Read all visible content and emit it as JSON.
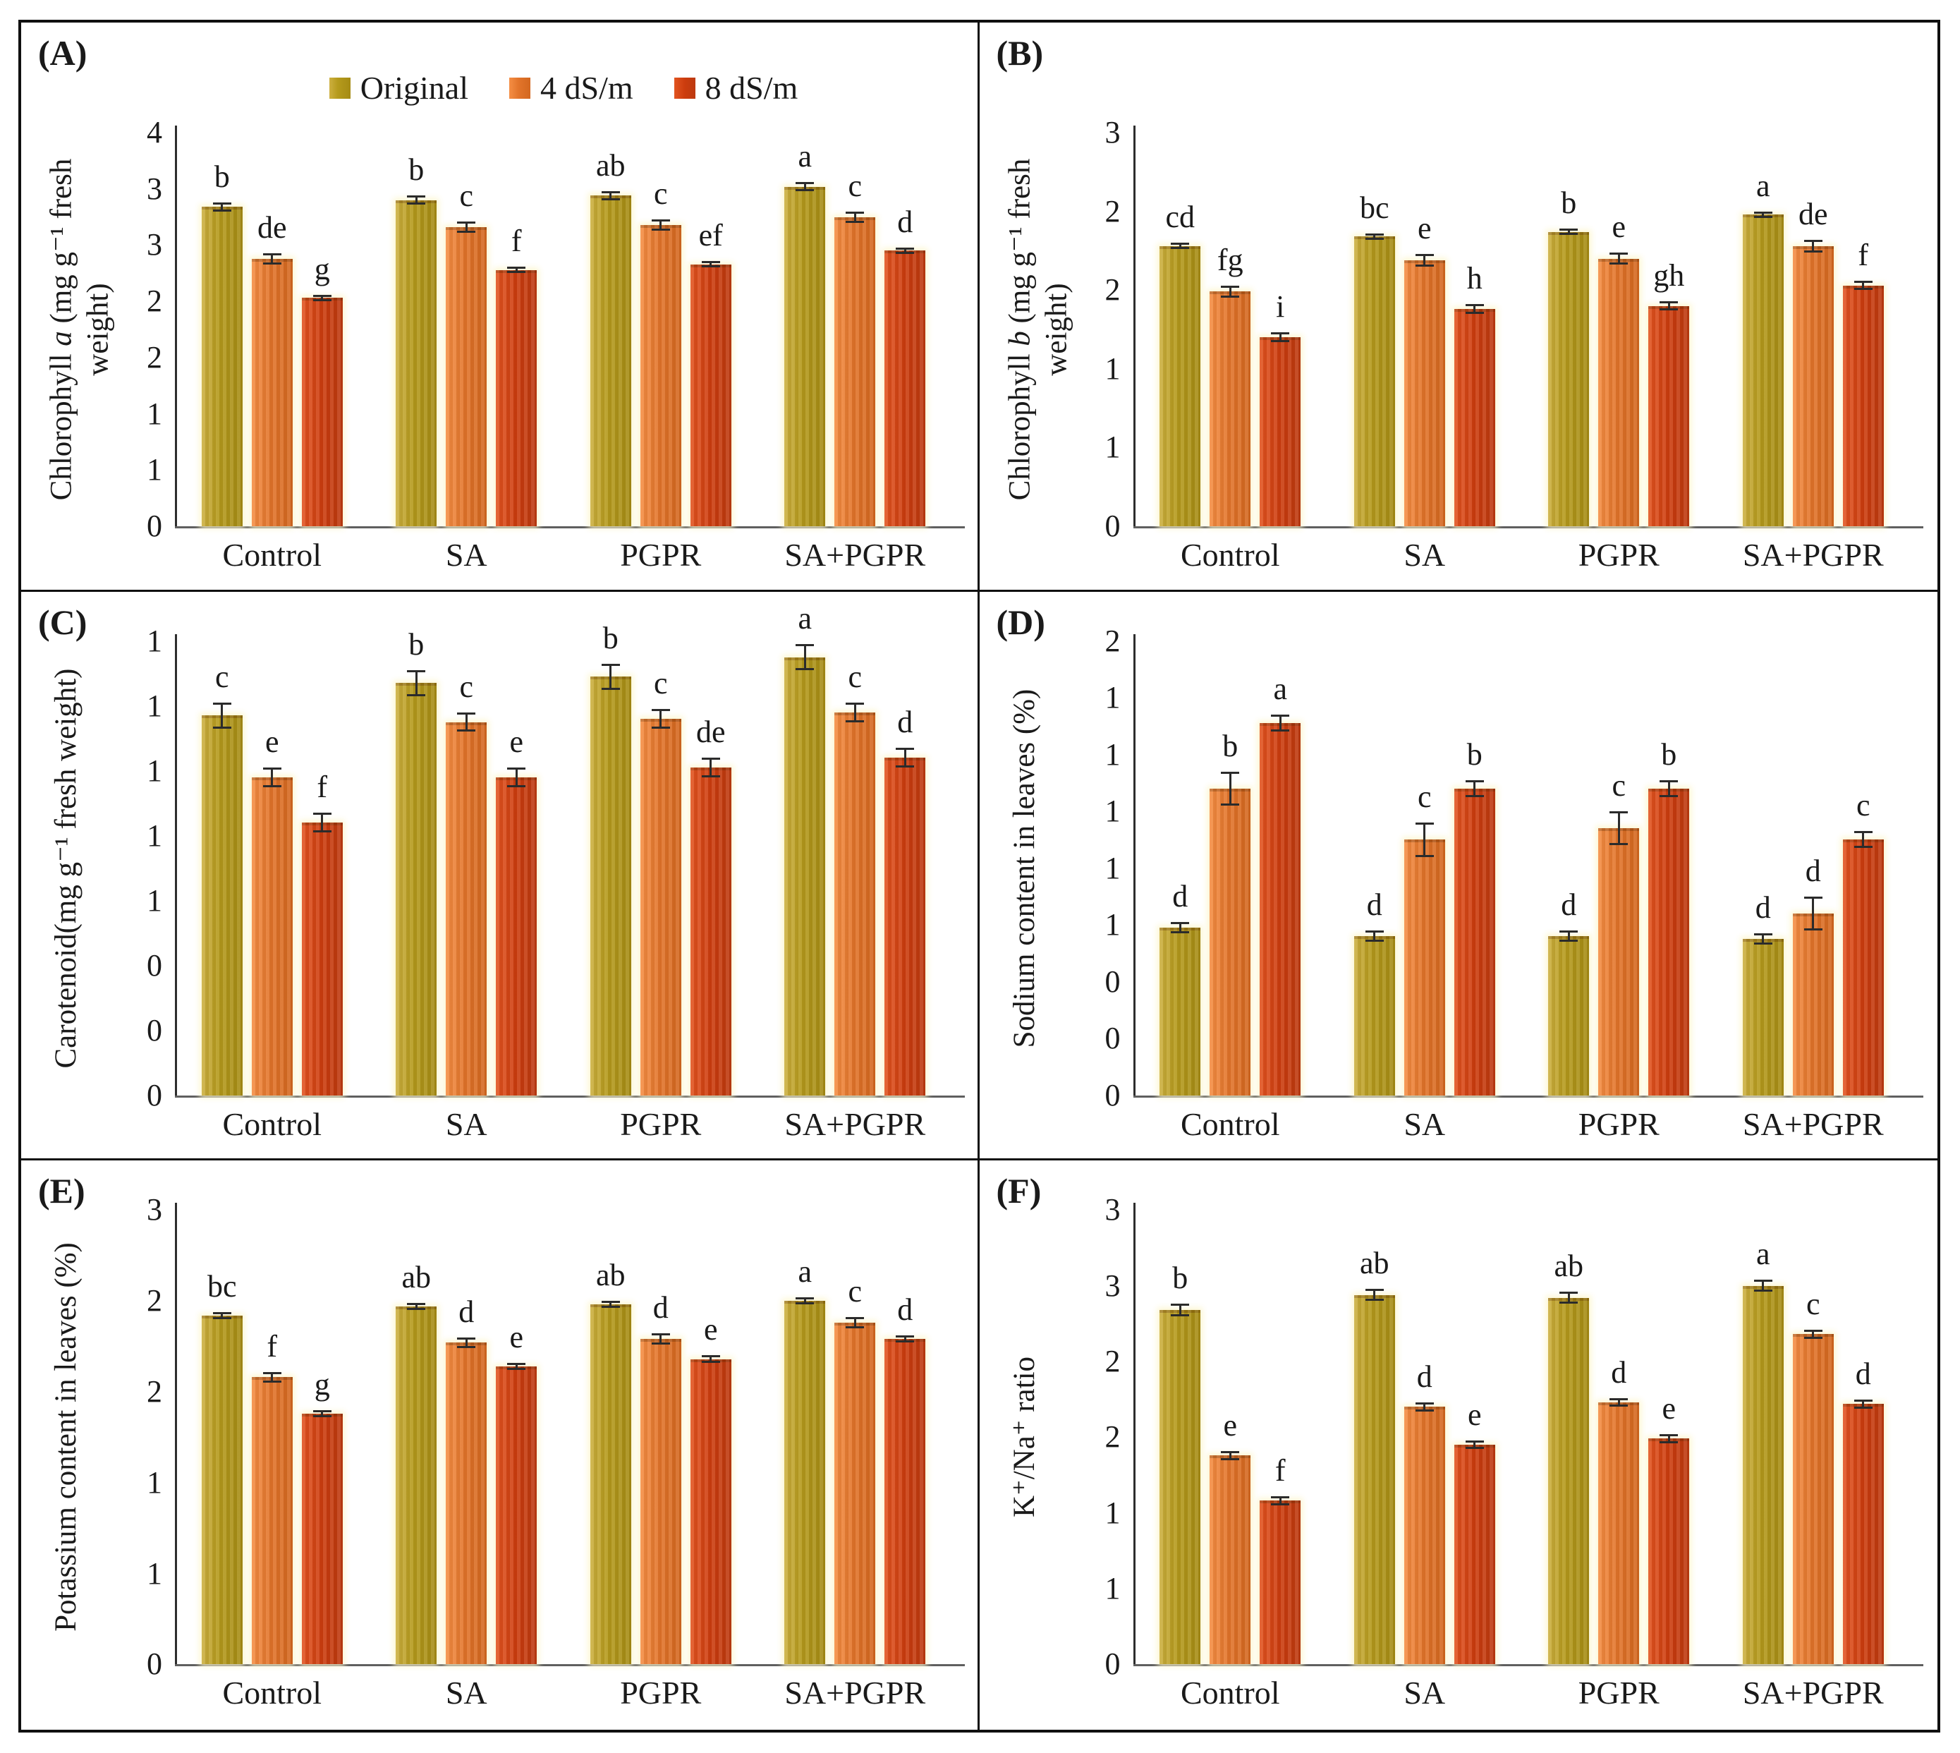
{
  "categories": [
    "Control",
    "SA",
    "PGPR",
    "SA+PGPR"
  ],
  "series": [
    {
      "name": "Original",
      "color": "#B59A1C"
    },
    {
      "name": "4 dS/m",
      "color": "#E2742A"
    },
    {
      "name": "8 dS/m",
      "color": "#CC3C0E"
    }
  ],
  "colors": {
    "halo": "#FBF4CE",
    "axis": "#2E2E2E",
    "baseline": "#5F5F5F",
    "panel_border": "#101010",
    "text": "#1A1A1A"
  },
  "legend": {
    "shown_on_panel": "(A)",
    "position": "top-center"
  },
  "chart_data": [
    {
      "type": "bar",
      "tag": "(A)",
      "ylabel_pre": "Chlorophyll ",
      "ylabel_em": "a",
      "ylabel_post": " (mg g⁻¹ fresh weight)",
      "ymax": 3.5,
      "tick_step": 0.5,
      "tick_labels_bottom_up": [
        "0",
        "1",
        "1",
        "2",
        "2",
        "3",
        "3",
        "4"
      ],
      "series": [
        {
          "name": "Original",
          "values": [
            2.84,
            2.9,
            2.94,
            3.02
          ],
          "letters": [
            "b",
            "b",
            "ab",
            "a"
          ],
          "err": 0.04
        },
        {
          "name": "4 dS/m",
          "values": [
            2.38,
            2.66,
            2.68,
            2.75
          ],
          "letters": [
            "de",
            "c",
            "c",
            "c"
          ],
          "err": 0.05
        },
        {
          "name": "8 dS/m",
          "values": [
            2.03,
            2.28,
            2.33,
            2.45
          ],
          "letters": [
            "g",
            "f",
            "ef",
            "d"
          ],
          "err": 0.03
        }
      ]
    },
    {
      "type": "bar",
      "tag": "(B)",
      "ylabel_pre": "Chlorophyll ",
      "ylabel_em": "b",
      "ylabel_post": " (mg g⁻¹ fresh weight)",
      "ymax": 2.5,
      "tick_step": 0.5,
      "tick_labels_bottom_up": [
        "0",
        "1",
        "1",
        "2",
        "2",
        "3"
      ],
      "series": [
        {
          "name": "Original",
          "values": [
            1.78,
            1.84,
            1.87,
            1.98
          ],
          "letters": [
            "cd",
            "bc",
            "b",
            "a"
          ],
          "err": 0.02
        },
        {
          "name": "4 dS/m",
          "values": [
            1.49,
            1.69,
            1.7,
            1.78
          ],
          "letters": [
            "fg",
            "e",
            "e",
            "de"
          ],
          "err": 0.04
        },
        {
          "name": "8 dS/m",
          "values": [
            1.2,
            1.38,
            1.4,
            1.53
          ],
          "letters": [
            "i",
            "h",
            "gh",
            "f"
          ],
          "err": 0.03
        }
      ]
    },
    {
      "type": "bar",
      "tag": "(C)",
      "ylabel_pre": "Carotenoid(mg g⁻¹ fresh weight)",
      "ylabel_em": "",
      "ylabel_post": "",
      "ymax": 1.4,
      "tick_step": 0.2,
      "tick_labels_bottom_up": [
        "0",
        "0",
        "0",
        "1",
        "1",
        "1",
        "1",
        "1"
      ],
      "series": [
        {
          "name": "Original",
          "values": [
            1.17,
            1.27,
            1.29,
            1.35
          ],
          "letters": [
            "c",
            "b",
            "b",
            "a"
          ],
          "err": 0.04
        },
        {
          "name": "4 dS/m",
          "values": [
            0.98,
            1.15,
            1.16,
            1.18
          ],
          "letters": [
            "e",
            "c",
            "c",
            "c"
          ],
          "err": 0.03
        },
        {
          "name": "8 dS/m",
          "values": [
            0.84,
            0.98,
            1.01,
            1.04
          ],
          "letters": [
            "f",
            "e",
            "de",
            "d"
          ],
          "err": 0.03
        }
      ]
    },
    {
      "type": "bar",
      "tag": "(D)",
      "ylabel_pre": "Sodium content in leaves (%)",
      "ylabel_em": "",
      "ylabel_post": "",
      "ymax": 1.6,
      "tick_step": 0.2,
      "tick_labels_bottom_up": [
        "0",
        "0",
        "0",
        "1",
        "1",
        "1",
        "1",
        "1",
        "2"
      ],
      "series": [
        {
          "name": "Original",
          "values": [
            0.59,
            0.56,
            0.56,
            0.55
          ],
          "letters": [
            "d",
            "d",
            "d",
            "d"
          ],
          "err": 0.02
        },
        {
          "name": "4 dS/m",
          "values": [
            1.08,
            0.9,
            0.94,
            0.64
          ],
          "letters": [
            "b",
            "c",
            "c",
            "d"
          ],
          "err": 0.06
        },
        {
          "name": "8 dS/m",
          "values": [
            1.31,
            1.08,
            1.08,
            0.9
          ],
          "letters": [
            "a",
            "b",
            "b",
            "c"
          ],
          "err": 0.03
        }
      ]
    },
    {
      "type": "bar",
      "tag": "(E)",
      "ylabel_pre": "Potassium content in leaves (%)",
      "ylabel_em": "",
      "ylabel_post": "",
      "ymax": 2.5,
      "tick_step": 0.5,
      "tick_labels_bottom_up": [
        "0",
        "1",
        "1",
        "2",
        "2",
        "3"
      ],
      "series": [
        {
          "name": "Original",
          "values": [
            1.92,
            1.97,
            1.98,
            2.0
          ],
          "letters": [
            "bc",
            "ab",
            "ab",
            "a"
          ],
          "err": 0.02
        },
        {
          "name": "4 dS/m",
          "values": [
            1.58,
            1.77,
            1.79,
            1.88
          ],
          "letters": [
            "f",
            "d",
            "d",
            "c"
          ],
          "err": 0.03
        },
        {
          "name": "8 dS/m",
          "values": [
            1.38,
            1.64,
            1.68,
            1.79
          ],
          "letters": [
            "g",
            "e",
            "e",
            "d"
          ],
          "err": 0.02
        }
      ]
    },
    {
      "type": "bar",
      "tag": "(F)",
      "ylabel_pre": "K⁺/Na⁺ ratio",
      "ylabel_em": "",
      "ylabel_post": "",
      "ymax": 3.0,
      "tick_step": 0.5,
      "tick_labels_bottom_up": [
        "0",
        "1",
        "1",
        "2",
        "2",
        "3",
        "3"
      ],
      "series": [
        {
          "name": "Original",
          "values": [
            2.34,
            2.44,
            2.42,
            2.5
          ],
          "letters": [
            "b",
            "ab",
            "ab",
            "a"
          ],
          "err": 0.04
        },
        {
          "name": "4 dS/m",
          "values": [
            1.38,
            1.7,
            1.73,
            2.18
          ],
          "letters": [
            "e",
            "d",
            "d",
            "c"
          ],
          "err": 0.03
        },
        {
          "name": "8 dS/m",
          "values": [
            1.08,
            1.45,
            1.49,
            1.72
          ],
          "letters": [
            "f",
            "e",
            "e",
            "d"
          ],
          "err": 0.03
        }
      ]
    }
  ]
}
